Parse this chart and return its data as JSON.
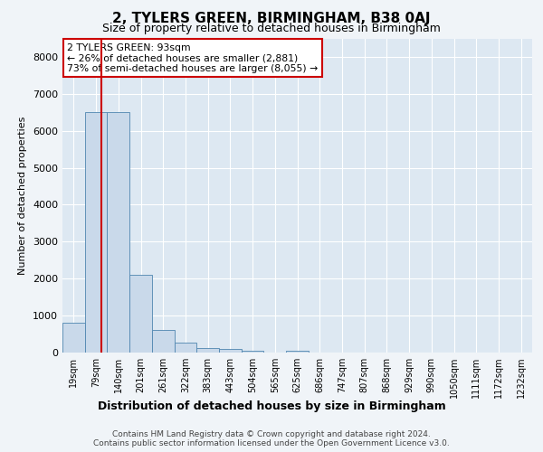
{
  "title": "2, TYLERS GREEN, BIRMINGHAM, B38 0AJ",
  "subtitle": "Size of property relative to detached houses in Birmingham",
  "xlabel": "Distribution of detached houses by size in Birmingham",
  "ylabel": "Number of detached properties",
  "footer_line1": "Contains HM Land Registry data © Crown copyright and database right 2024.",
  "footer_line2": "Contains public sector information licensed under the Open Government Licence v3.0.",
  "annotation_line1": "2 TYLERS GREEN: 93sqm",
  "annotation_line2": "← 26% of detached houses are smaller (2,881)",
  "annotation_line3": "73% of semi-detached houses are larger (8,055) →",
  "bar_labels": [
    "19sqm",
    "79sqm",
    "140sqm",
    "201sqm",
    "261sqm",
    "322sqm",
    "383sqm",
    "443sqm",
    "504sqm",
    "565sqm",
    "625sqm",
    "686sqm",
    "747sqm",
    "807sqm",
    "868sqm",
    "929sqm",
    "990sqm",
    "1050sqm",
    "1111sqm",
    "1172sqm",
    "1232sqm"
  ],
  "bar_values": [
    800,
    6500,
    6500,
    2100,
    600,
    280,
    120,
    100,
    50,
    0,
    50,
    0,
    0,
    0,
    0,
    0,
    0,
    0,
    0,
    0,
    0
  ],
  "bar_color": "#c9d9ea",
  "bar_edge_color": "#4f86b0",
  "red_line_x": 1.22,
  "ylim": [
    0,
    8500
  ],
  "yticks": [
    0,
    1000,
    2000,
    3000,
    4000,
    5000,
    6000,
    7000,
    8000
  ],
  "bg_color": "#f0f4f8",
  "plot_bg_color": "#dde8f2",
  "grid_color": "#ffffff",
  "annotation_box_facecolor": "#ffffff",
  "annotation_box_edgecolor": "#cc0000",
  "red_line_color": "#cc0000",
  "title_fontsize": 11,
  "subtitle_fontsize": 9
}
